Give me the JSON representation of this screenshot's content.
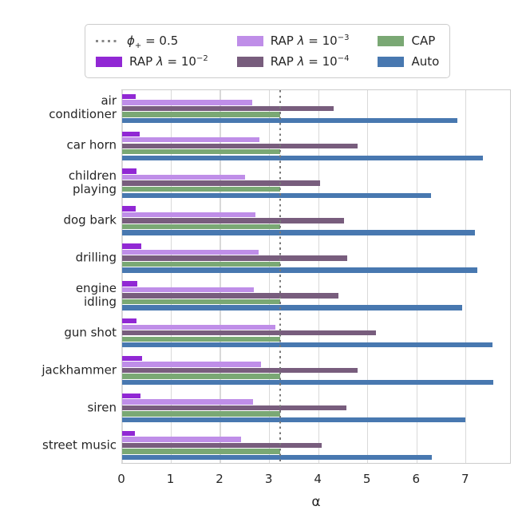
{
  "figure": {
    "background": "#ffffff",
    "text_color": "#262626",
    "grid_color": "#d9d9d9",
    "frame_color": "#cccccc"
  },
  "legend": {
    "items": [
      {
        "name": "legend-item-phi-threshold",
        "kind": "line",
        "color": "#888888",
        "parts": [
          {
            "t": "ϕ",
            "i": true
          },
          {
            "t": "+",
            "sub": true
          },
          {
            "t": " = 0.5"
          }
        ]
      },
      {
        "name": "legend-item-rap-1e-2",
        "kind": "patch",
        "color": "#9128d4",
        "parts": [
          {
            "t": "RAP "
          },
          {
            "t": "λ",
            "i": true
          },
          {
            "t": " = 10"
          },
          {
            "t": "−2",
            "sup": true
          }
        ]
      },
      {
        "name": "legend-item-rap-1e-3",
        "kind": "patch",
        "color": "#bf8ee8",
        "parts": [
          {
            "t": "RAP "
          },
          {
            "t": "λ",
            "i": true
          },
          {
            "t": " = 10"
          },
          {
            "t": "−3",
            "sup": true
          }
        ]
      },
      {
        "name": "legend-item-rap-1e-4",
        "kind": "patch",
        "color": "#785d7d",
        "parts": [
          {
            "t": "RAP "
          },
          {
            "t": "λ",
            "i": true
          },
          {
            "t": " = 10"
          },
          {
            "t": "−4",
            "sup": true
          }
        ]
      },
      {
        "name": "legend-item-cap",
        "kind": "patch",
        "color": "#7aa874",
        "parts": [
          {
            "t": "CAP"
          }
        ]
      },
      {
        "name": "legend-item-auto",
        "kind": "patch",
        "color": "#4878b0",
        "parts": [
          {
            "t": "Auto"
          }
        ]
      }
    ]
  },
  "chart_data": {
    "type": "bar",
    "orientation": "horizontal",
    "title": "",
    "xlabel": "α",
    "ylabel": "",
    "xlim": [
      0,
      7.93
    ],
    "xticks": [
      0,
      1,
      2,
      3,
      4,
      5,
      6,
      7
    ],
    "grid": true,
    "legend_position": "upper center, outside axes, 3 columns",
    "reference_line": {
      "label": "ϕ+ = 0.5",
      "value": 3.22,
      "style": "dotted",
      "color": "#777777"
    },
    "categories": [
      "air conditioner",
      "car horn",
      "children playing",
      "dog bark",
      "drilling",
      "engine idling",
      "gun shot",
      "jackhammer",
      "siren",
      "street music"
    ],
    "category_display": [
      "air\nconditioner",
      "car horn",
      "children\nplaying",
      "dog bark",
      "drilling",
      "engine\nidling",
      "gun shot",
      "jackhammer",
      "siren",
      "street music"
    ],
    "series": [
      {
        "name": "RAP λ = 10^−2",
        "color": "#9128d4",
        "values": [
          0.28,
          0.36,
          0.3,
          0.28,
          0.39,
          0.31,
          0.3,
          0.41,
          0.38,
          0.26
        ]
      },
      {
        "name": "RAP λ = 10^−3",
        "color": "#bf8ee8",
        "values": [
          2.65,
          2.8,
          2.5,
          2.72,
          2.78,
          2.68,
          3.12,
          2.82,
          2.66,
          2.42
        ]
      },
      {
        "name": "RAP λ = 10^−4",
        "color": "#785d7d",
        "values": [
          4.31,
          4.8,
          4.03,
          4.52,
          4.58,
          4.4,
          5.17,
          4.8,
          4.56,
          4.07
        ]
      },
      {
        "name": "CAP",
        "color": "#7aa874",
        "values": [
          3.22,
          3.22,
          3.22,
          3.22,
          3.22,
          3.22,
          3.22,
          3.22,
          3.22,
          3.22
        ]
      },
      {
        "name": "Auto",
        "color": "#4878b0",
        "values": [
          6.82,
          7.34,
          6.29,
          7.19,
          7.23,
          6.93,
          7.54,
          7.56,
          6.98,
          6.3
        ]
      }
    ]
  }
}
